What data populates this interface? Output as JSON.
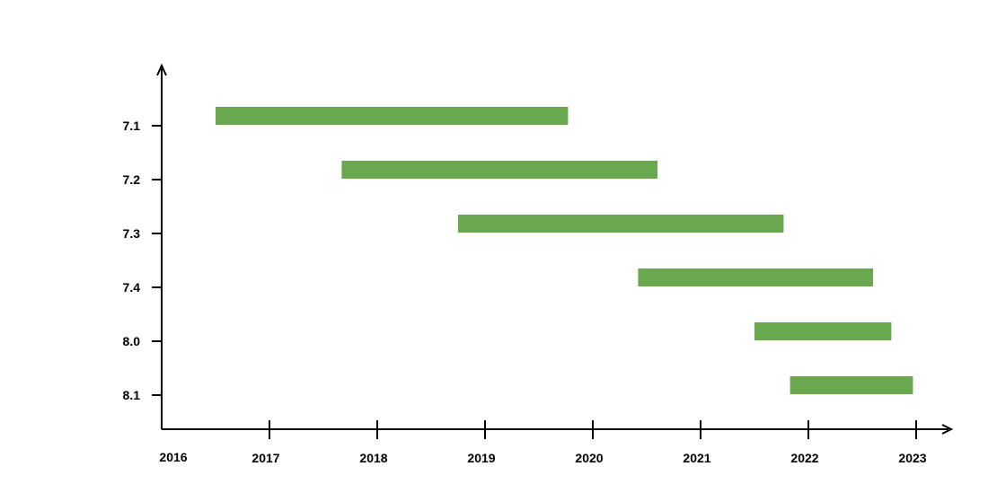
{
  "chart_data": {
    "type": "gantt",
    "title": "",
    "xlabel": "",
    "ylabel": "",
    "x_ticks": [
      "2016",
      "2017",
      "2018",
      "2019",
      "2020",
      "2021",
      "2022",
      "2023"
    ],
    "categories": [
      "7.1",
      "7.2",
      "7.3",
      "7.4",
      "8.0",
      "8.1"
    ],
    "bars": [
      {
        "label": "7.1",
        "start": 2016.5,
        "end": 2019.77
      },
      {
        "label": "7.2",
        "start": 2017.67,
        "end": 2020.6
      },
      {
        "label": "7.3",
        "start": 2018.75,
        "end": 2021.77
      },
      {
        "label": "7.4",
        "start": 2020.42,
        "end": 2022.6
      },
      {
        "label": "8.0",
        "start": 2021.5,
        "end": 2022.77
      },
      {
        "label": "8.1",
        "start": 2021.83,
        "end": 2022.97
      }
    ],
    "bar_color": "#6aa84f",
    "xlim": [
      2016,
      2023
    ],
    "grid": false,
    "legend": "none"
  }
}
